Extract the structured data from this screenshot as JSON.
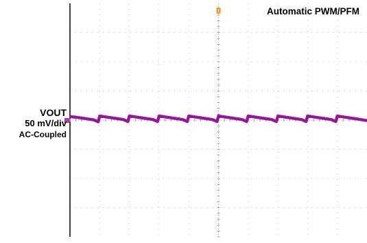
{
  "chart_data": {
    "type": "line",
    "title": "",
    "annotations": [
      "Automatic PWM/PFM"
    ],
    "channel_label": "VOUT",
    "scale_label": "50 mV/div",
    "coupling_label": "AC-Coupled",
    "grid": true,
    "xlim": [
      0,
      10
    ],
    "ylim": [
      -4,
      4
    ],
    "series": [
      {
        "name": "VOUT",
        "color": "#9b1f9e",
        "ripple_period_div": 1,
        "ripple_amplitude_div": 0.2,
        "offset_div": 0.0,
        "values": [
          {
            "x": 0.0,
            "y": 0.12
          },
          {
            "x": 0.2,
            "y": 0.1
          },
          {
            "x": 0.4,
            "y": 0.07
          },
          {
            "x": 0.6,
            "y": 0.04
          },
          {
            "x": 0.8,
            "y": 0.01
          },
          {
            "x": 0.95,
            "y": -0.06
          },
          {
            "x": 1.0,
            "y": 0.14
          },
          {
            "x": 1.2,
            "y": 0.11
          },
          {
            "x": 1.4,
            "y": 0.08
          },
          {
            "x": 1.6,
            "y": 0.05
          },
          {
            "x": 1.8,
            "y": 0.02
          },
          {
            "x": 1.95,
            "y": -0.05
          },
          {
            "x": 2.0,
            "y": 0.14
          },
          {
            "x": 2.2,
            "y": 0.11
          },
          {
            "x": 2.4,
            "y": 0.08
          },
          {
            "x": 2.6,
            "y": 0.05
          },
          {
            "x": 2.8,
            "y": 0.02
          },
          {
            "x": 2.95,
            "y": -0.05
          },
          {
            "x": 3.0,
            "y": 0.14
          },
          {
            "x": 3.2,
            "y": 0.11
          },
          {
            "x": 3.4,
            "y": 0.08
          },
          {
            "x": 3.6,
            "y": 0.05
          },
          {
            "x": 3.8,
            "y": 0.02
          },
          {
            "x": 3.95,
            "y": -0.05
          },
          {
            "x": 4.0,
            "y": 0.14
          },
          {
            "x": 4.2,
            "y": 0.11
          },
          {
            "x": 4.4,
            "y": 0.08
          },
          {
            "x": 4.6,
            "y": 0.05
          },
          {
            "x": 4.8,
            "y": 0.02
          },
          {
            "x": 4.95,
            "y": -0.05
          },
          {
            "x": 5.0,
            "y": 0.14
          },
          {
            "x": 5.2,
            "y": 0.11
          },
          {
            "x": 5.4,
            "y": 0.08
          },
          {
            "x": 5.6,
            "y": 0.05
          },
          {
            "x": 5.8,
            "y": 0.02
          },
          {
            "x": 5.95,
            "y": -0.05
          },
          {
            "x": 6.0,
            "y": 0.14
          },
          {
            "x": 6.2,
            "y": 0.11
          },
          {
            "x": 6.4,
            "y": 0.08
          },
          {
            "x": 6.6,
            "y": 0.05
          },
          {
            "x": 6.8,
            "y": 0.02
          },
          {
            "x": 6.95,
            "y": -0.05
          },
          {
            "x": 7.0,
            "y": 0.14
          },
          {
            "x": 7.2,
            "y": 0.11
          },
          {
            "x": 7.4,
            "y": 0.08
          },
          {
            "x": 7.6,
            "y": 0.05
          },
          {
            "x": 7.8,
            "y": 0.02
          },
          {
            "x": 7.95,
            "y": -0.05
          },
          {
            "x": 8.0,
            "y": 0.14
          },
          {
            "x": 8.2,
            "y": 0.11
          },
          {
            "x": 8.4,
            "y": 0.08
          },
          {
            "x": 8.6,
            "y": 0.05
          },
          {
            "x": 8.8,
            "y": 0.02
          },
          {
            "x": 8.95,
            "y": -0.05
          },
          {
            "x": 9.0,
            "y": 0.14
          },
          {
            "x": 9.2,
            "y": 0.11
          },
          {
            "x": 9.4,
            "y": 0.08
          },
          {
            "x": 9.6,
            "y": 0.05
          },
          {
            "x": 9.8,
            "y": 0.02
          },
          {
            "x": 10.0,
            "y": -0.02
          }
        ]
      }
    ]
  },
  "colors": {
    "trace": "#9b1f9e",
    "trigger_marker": "#e69a22",
    "channel_marker": "#b03db0",
    "grid": "#b9b9b9"
  },
  "markers": {
    "trigger_icon": "trigger-marker-icon",
    "channel_icon": "channel-marker-icon"
  }
}
